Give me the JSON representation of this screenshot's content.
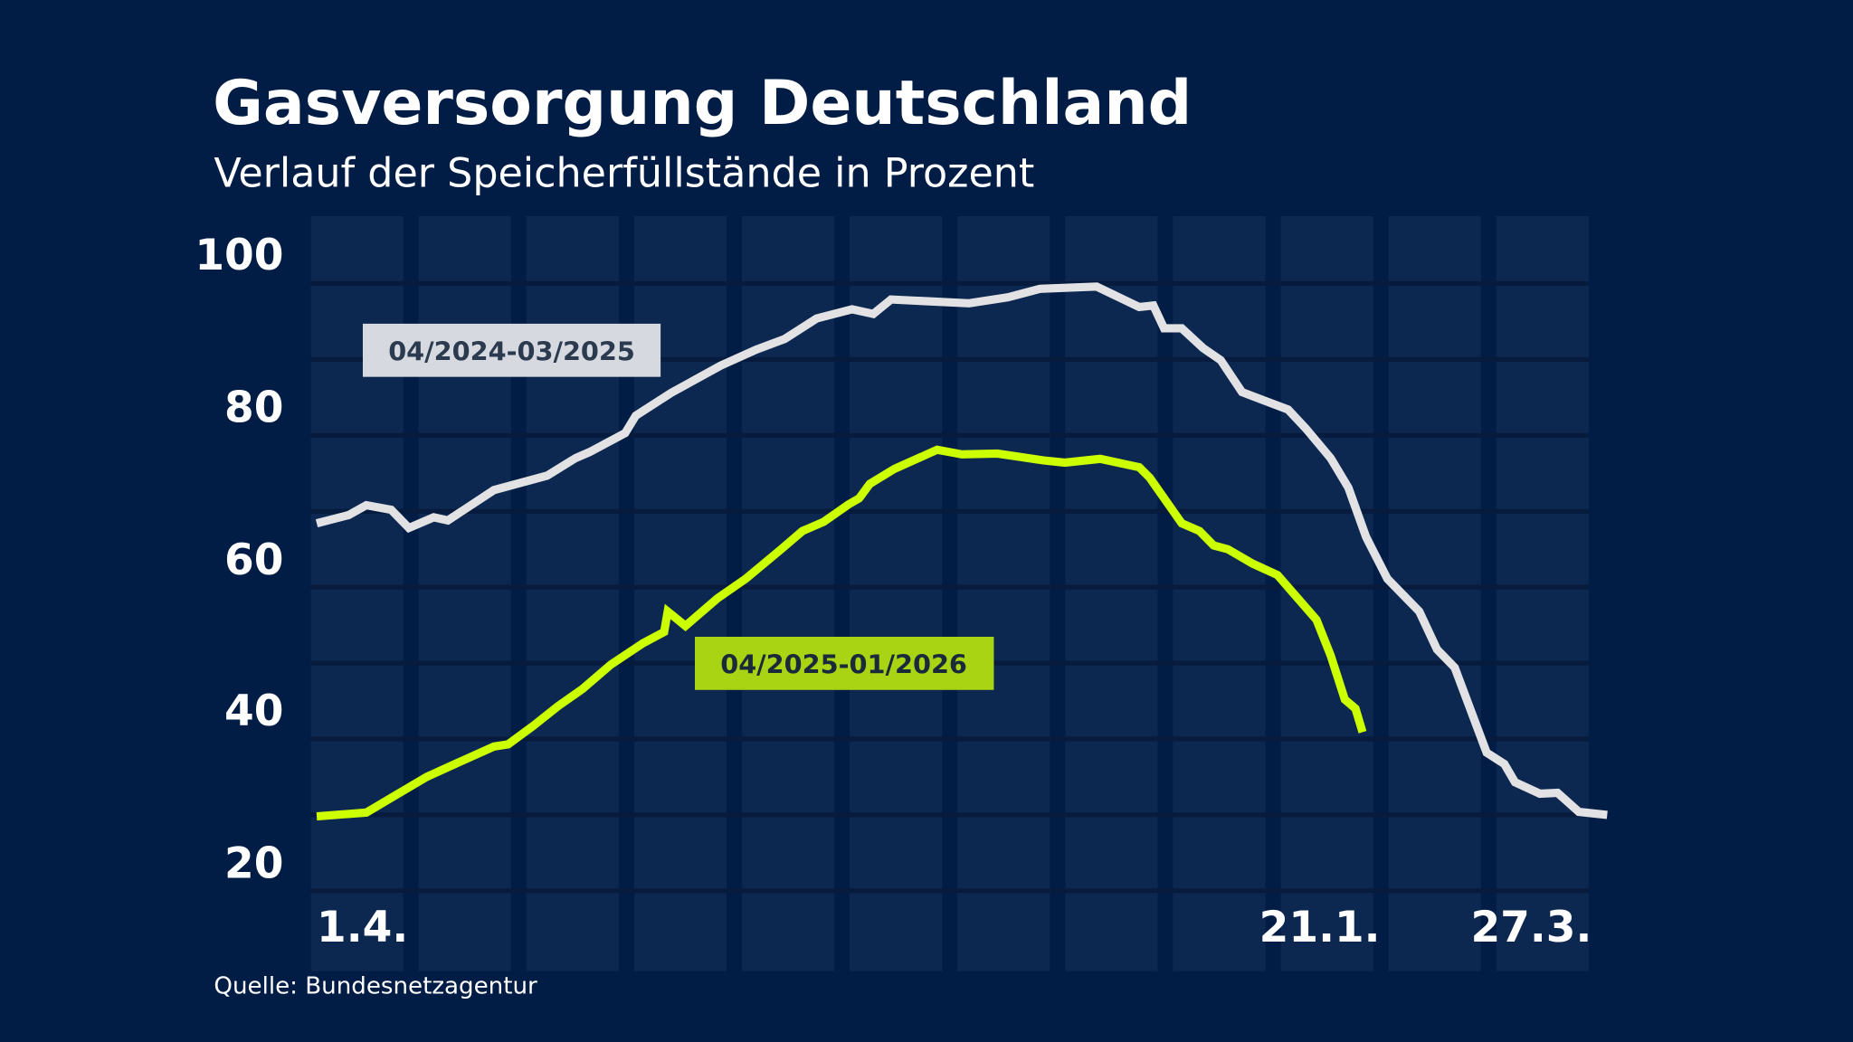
{
  "chart_data": {
    "type": "line",
    "title": "Gasversorgung Deutschland",
    "subtitle": "Verlauf der Speicherfüllstände in Prozent",
    "source": "Quelle: Bundesnetzagentur",
    "xlabel": "",
    "ylabel": "",
    "ylim": [
      20,
      100
    ],
    "y_ticks": [
      "100",
      "80",
      "60",
      "40",
      "20"
    ],
    "x_ticks": [
      "1.4.",
      "21.1.",
      "27.3."
    ],
    "x_range": [
      "04-01",
      "03-31"
    ],
    "grid": true,
    "month_bands": 12,
    "colors": {
      "background": "#021d45",
      "band": "#0d2850",
      "grid": "#061b3d",
      "series_2024": "#e2e2e4",
      "series_2025": "#ccff00",
      "label_2024_bg": "#d6d9df",
      "label_2025_bg": "#a8d414"
    },
    "series": [
      {
        "name": "04/2024-03/2025",
        "points": [
          [
            "2024-04-01",
            68.4
          ],
          [
            "2024-04-10",
            69.5
          ],
          [
            "2024-04-15",
            70.8
          ],
          [
            "2024-04-22",
            70.2
          ],
          [
            "2024-04-27",
            67.8
          ],
          [
            "2024-05-04",
            69.2
          ],
          [
            "2024-05-08",
            68.8
          ],
          [
            "2024-05-21",
            72.8
          ],
          [
            "2024-06-05",
            74.7
          ],
          [
            "2024-06-13",
            77.0
          ],
          [
            "2024-06-17",
            77.8
          ],
          [
            "2024-06-27",
            80.3
          ],
          [
            "2024-06-30",
            82.6
          ],
          [
            "2024-07-10",
            85.6
          ],
          [
            "2024-07-24",
            89.2
          ],
          [
            "2024-08-03",
            91.3
          ],
          [
            "2024-08-11",
            92.7
          ],
          [
            "2024-08-20",
            95.4
          ],
          [
            "2024-08-30",
            96.6
          ],
          [
            "2024-09-05",
            96.0
          ],
          [
            "2024-09-10",
            97.9
          ],
          [
            "2024-10-02",
            97.4
          ],
          [
            "2024-10-13",
            98.2
          ],
          [
            "2024-10-22",
            99.3
          ],
          [
            "2024-11-07",
            99.6
          ],
          [
            "2024-11-19",
            96.9
          ],
          [
            "2024-11-23",
            97.1
          ],
          [
            "2024-11-26",
            94.1
          ],
          [
            "2024-12-01",
            94.1
          ],
          [
            "2024-12-07",
            91.5
          ],
          [
            "2024-12-12",
            89.9
          ],
          [
            "2024-12-18",
            85.7
          ],
          [
            "2024-12-31",
            83.4
          ],
          [
            "2025-01-05",
            80.9
          ],
          [
            "2025-01-12",
            77.0
          ],
          [
            "2025-01-17",
            73.1
          ],
          [
            "2025-01-22",
            66.6
          ],
          [
            "2025-01-28",
            61.1
          ],
          [
            "2025-02-06",
            56.8
          ],
          [
            "2025-02-11",
            51.8
          ],
          [
            "2025-02-16",
            49.4
          ],
          [
            "2025-02-25",
            38.2
          ],
          [
            "2025-03-02",
            36.7
          ],
          [
            "2025-03-05",
            34.3
          ],
          [
            "2025-03-12",
            32.8
          ],
          [
            "2025-03-17",
            32.9
          ],
          [
            "2025-03-23",
            30.4
          ],
          [
            "2025-03-31",
            30.0
          ]
        ]
      },
      {
        "name": "04/2025-01/2026",
        "points": [
          [
            "2025-04-01",
            29.8
          ],
          [
            "2025-04-15",
            30.3
          ],
          [
            "2025-04-24",
            32.8
          ],
          [
            "2025-05-02",
            35.0
          ],
          [
            "2025-05-10",
            36.7
          ],
          [
            "2025-05-21",
            39.0
          ],
          [
            "2025-05-25",
            39.3
          ],
          [
            "2025-06-01",
            41.7
          ],
          [
            "2025-06-08",
            44.3
          ],
          [
            "2025-06-15",
            46.6
          ],
          [
            "2025-06-23",
            49.8
          ],
          [
            "2025-07-02",
            52.6
          ],
          [
            "2025-07-08",
            54.1
          ],
          [
            "2025-07-09",
            56.8
          ],
          [
            "2025-07-14",
            54.9
          ],
          [
            "2025-07-23",
            58.5
          ],
          [
            "2025-07-31",
            61.1
          ],
          [
            "2025-08-10",
            65.0
          ],
          [
            "2025-08-16",
            67.4
          ],
          [
            "2025-08-22",
            68.6
          ],
          [
            "2025-08-29",
            70.9
          ],
          [
            "2025-09-01",
            71.7
          ],
          [
            "2025-09-04",
            73.6
          ],
          [
            "2025-09-11",
            75.6
          ],
          [
            "2025-09-23",
            78.1
          ],
          [
            "2025-09-30",
            77.5
          ],
          [
            "2025-10-10",
            77.6
          ],
          [
            "2025-10-23",
            76.7
          ],
          [
            "2025-10-29",
            76.4
          ],
          [
            "2025-11-08",
            76.9
          ],
          [
            "2025-11-19",
            75.8
          ],
          [
            "2025-11-22",
            74.4
          ],
          [
            "2025-12-01",
            68.4
          ],
          [
            "2025-12-06",
            67.4
          ],
          [
            "2025-12-10",
            65.5
          ],
          [
            "2025-12-14",
            65.0
          ],
          [
            "2025-12-21",
            63.1
          ],
          [
            "2025-12-28",
            61.6
          ],
          [
            "2026-01-08",
            55.7
          ],
          [
            "2026-01-12",
            51.0
          ],
          [
            "2026-01-16",
            45.2
          ],
          [
            "2026-01-19",
            44.0
          ],
          [
            "2026-01-21",
            40.9
          ]
        ]
      }
    ]
  }
}
